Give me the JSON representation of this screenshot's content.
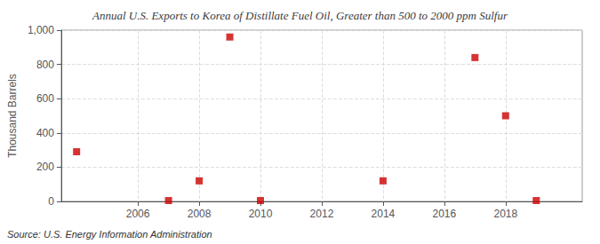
{
  "chart_data": {
    "type": "scatter",
    "title": "Annual U.S. Exports to Korea of Distillate Fuel Oil, Greater than 500 to 2000 ppm Sulfur",
    "ylabel": "Thousand Barrels",
    "annotation": "Source: U.S. Energy Information Administration",
    "x": [
      2004,
      2007,
      2008,
      2009,
      2010,
      2014,
      2017,
      2018,
      2019
    ],
    "values": [
      290,
      5,
      120,
      960,
      5,
      120,
      840,
      500,
      5
    ],
    "color": "#cc0000",
    "marker": "square",
    "xlim": [
      2003.5,
      2020.5
    ],
    "xticks": [
      2006,
      2008,
      2010,
      2012,
      2014,
      2016,
      2018
    ],
    "ylim": [
      0,
      1000
    ],
    "yticks": [
      0,
      200,
      400,
      600,
      800,
      {
        "value": 1000,
        "label": "1,000"
      }
    ],
    "grid": true
  }
}
